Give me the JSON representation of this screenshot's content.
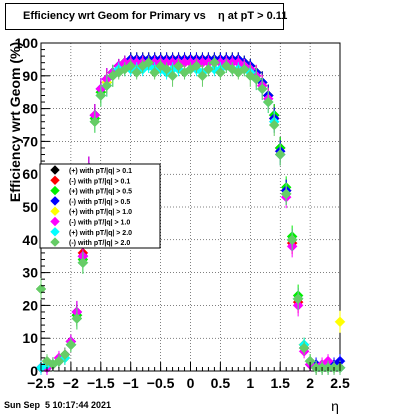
{
  "title": "Efficiency wrt Geom for Primary vs    η at pT > 0.11",
  "footer": "Sun Sep  5 10:17:44 2021",
  "chart_data": {
    "type": "scatter",
    "title": "Efficiency wrt Geom for Primary vs    η at pT > 0.11",
    "xlabel": "η",
    "ylabel": "Efficiency wrt Geom (%)",
    "xlim": [
      -2.5,
      2.5
    ],
    "ylim": [
      0,
      100
    ],
    "grid": true,
    "legend_position": "left",
    "x": [
      -2.5,
      -2.4,
      -2.3,
      -2.2,
      -2.1,
      -2.0,
      -1.9,
      -1.8,
      -1.7,
      -1.6,
      -1.5,
      -1.4,
      -1.3,
      -1.2,
      -1.1,
      -1.0,
      -0.9,
      -0.8,
      -0.7,
      -0.6,
      -0.5,
      -0.4,
      -0.3,
      -0.2,
      -0.1,
      0.0,
      0.1,
      0.2,
      0.3,
      0.4,
      0.5,
      0.6,
      0.7,
      0.8,
      0.9,
      1.0,
      1.1,
      1.2,
      1.3,
      1.4,
      1.5,
      1.6,
      1.7,
      1.8,
      1.9,
      2.0,
      2.1,
      2.2,
      2.3,
      2.4,
      2.5
    ],
    "series": [
      {
        "name": "(+) with pT/|q| > 0.1",
        "color": "#000000",
        "values": [
          1,
          2,
          2,
          3,
          4,
          8,
          17,
          35,
          62,
          78,
          85,
          88,
          91,
          93,
          94,
          95,
          95,
          95,
          95,
          95,
          95,
          95,
          95,
          95,
          95,
          95,
          95,
          95,
          95,
          95,
          95,
          95,
          95,
          95,
          94,
          93,
          91,
          88,
          84,
          78,
          68,
          55,
          40,
          22,
          8,
          3,
          1,
          1,
          1,
          1,
          1
        ]
      },
      {
        "name": "(-) with pT/|q| > 0.1",
        "color": "#ff0000",
        "values": [
          1,
          1,
          2,
          3,
          5,
          9,
          18,
          36,
          62,
          78,
          85,
          89,
          91,
          93,
          94,
          95,
          95,
          95,
          95,
          95,
          95,
          95,
          95,
          95,
          95,
          95,
          95,
          95,
          95,
          95,
          95,
          95,
          95,
          95,
          94,
          93,
          91,
          88,
          84,
          77,
          67,
          54,
          39,
          21,
          7,
          2,
          1,
          1,
          1,
          1,
          1
        ]
      },
      {
        "name": "(+) with pT/|q| > 0.5",
        "color": "#00ee00",
        "values": [
          1,
          2,
          2,
          3,
          4,
          8,
          17,
          34,
          61,
          77,
          85,
          88,
          91,
          93,
          94,
          95,
          95,
          95,
          95,
          95,
          95,
          95,
          95,
          95,
          95,
          95,
          95,
          95,
          95,
          95,
          95,
          95,
          95,
          95,
          94,
          93,
          91,
          88,
          84,
          78,
          68,
          56,
          41,
          23,
          8,
          3,
          1,
          1,
          1,
          1,
          1
        ]
      },
      {
        "name": "(-) with pT/|q| > 0.5",
        "color": "#0000ff",
        "values": [
          1,
          1,
          2,
          3,
          5,
          9,
          18,
          35,
          62,
          78,
          86,
          89,
          91,
          93,
          94,
          95,
          95,
          95,
          95,
          95,
          95,
          95,
          95,
          95,
          95,
          95,
          95,
          95,
          95,
          95,
          95,
          95,
          95,
          95,
          94,
          93,
          91,
          88,
          84,
          77,
          67,
          55,
          40,
          22,
          7,
          2,
          2,
          1,
          1,
          2,
          3
        ]
      },
      {
        "name": "(+) with pT/|q| > 1.0",
        "color": "#ffff00",
        "values": [
          1,
          2,
          2,
          3,
          4,
          8,
          16,
          33,
          60,
          76,
          84,
          88,
          90,
          92,
          93,
          94,
          94,
          94,
          94,
          94,
          94,
          94,
          94,
          94,
          94,
          94,
          94,
          94,
          94,
          94,
          94,
          94,
          94,
          94,
          93,
          92,
          90,
          87,
          83,
          76,
          66,
          54,
          40,
          22,
          8,
          3,
          1,
          1,
          1,
          1,
          15
        ]
      },
      {
        "name": "(-) with pT/|q| > 1.0",
        "color": "#ff00ff",
        "values": [
          1,
          1,
          2,
          4,
          5,
          9,
          18,
          35,
          62,
          78,
          86,
          89,
          91,
          93,
          94,
          94,
          94,
          94,
          94,
          94,
          94,
          94,
          94,
          94,
          94,
          94,
          94,
          94,
          94,
          94,
          94,
          94,
          94,
          94,
          93,
          92,
          90,
          87,
          83,
          76,
          66,
          53,
          38,
          20,
          6,
          2,
          1,
          2,
          3,
          1,
          1
        ]
      },
      {
        "name": "(+) with pT/|q| > 2.0",
        "color": "#00ffff",
        "values": [
          1,
          2,
          2,
          3,
          4,
          8,
          16,
          33,
          60,
          76,
          84,
          87,
          90,
          92,
          92,
          92,
          92,
          92,
          93,
          92,
          92,
          91,
          92,
          92,
          91,
          92,
          92,
          91,
          92,
          92,
          92,
          93,
          92,
          92,
          92,
          91,
          89,
          86,
          82,
          76,
          66,
          54,
          40,
          22,
          8,
          3,
          1,
          1,
          1,
          1,
          1
        ]
      },
      {
        "name": "(-) with pT/|q| > 2.0",
        "color": "#66cc66",
        "values": [
          25,
          3,
          2,
          3,
          5,
          8,
          16,
          33,
          60,
          76,
          84,
          87,
          90,
          91,
          92,
          93,
          91,
          93,
          94,
          91,
          93,
          92,
          90,
          93,
          91,
          92,
          93,
          90,
          92,
          94,
          91,
          93,
          92,
          91,
          92,
          90,
          89,
          86,
          82,
          75,
          66,
          54,
          40,
          22,
          7,
          3,
          1,
          1,
          1,
          1,
          1
        ]
      }
    ],
    "x_ticks": [
      "-2.5",
      "-2",
      "-1.5",
      "-1",
      "-0.5",
      "0",
      "0.5",
      "1",
      "1.5",
      "2",
      "2.5"
    ],
    "y_ticks": [
      "0",
      "10",
      "20",
      "30",
      "40",
      "50",
      "60",
      "70",
      "80",
      "90",
      "100"
    ]
  }
}
